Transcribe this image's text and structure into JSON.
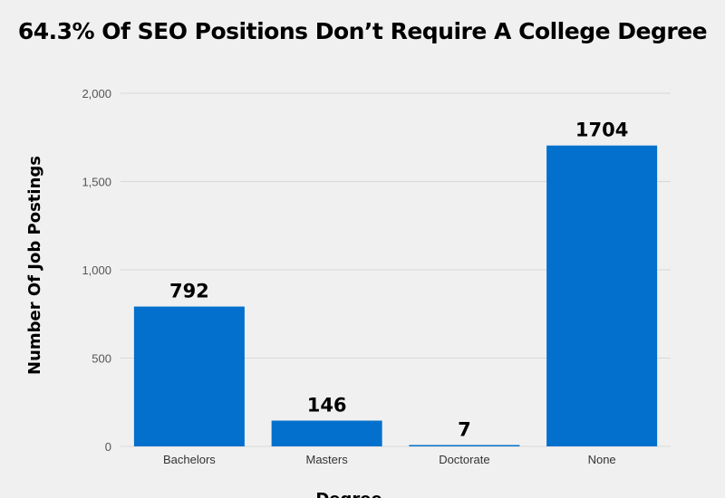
{
  "chart_data": {
    "type": "bar",
    "title": "64.3% Of SEO Positions Don’t Require A College Degree",
    "xlabel": "Degree",
    "ylabel": "Number Of Job Postings",
    "categories": [
      "Bachelors",
      "Masters",
      "Doctorate",
      "None"
    ],
    "values": [
      792,
      146,
      7,
      1704
    ],
    "data_labels": [
      "792",
      "146",
      "7",
      "1704"
    ],
    "ylim": [
      0,
      2000
    ],
    "yticks": [
      0,
      500,
      1000,
      1500,
      2000
    ],
    "ytick_labels": [
      "0",
      "500",
      "1,000",
      "1,500",
      "2,000"
    ],
    "grid": true,
    "legend": "none",
    "colors": {
      "bar": "#0270cc",
      "background": "#f0f0f0"
    }
  }
}
